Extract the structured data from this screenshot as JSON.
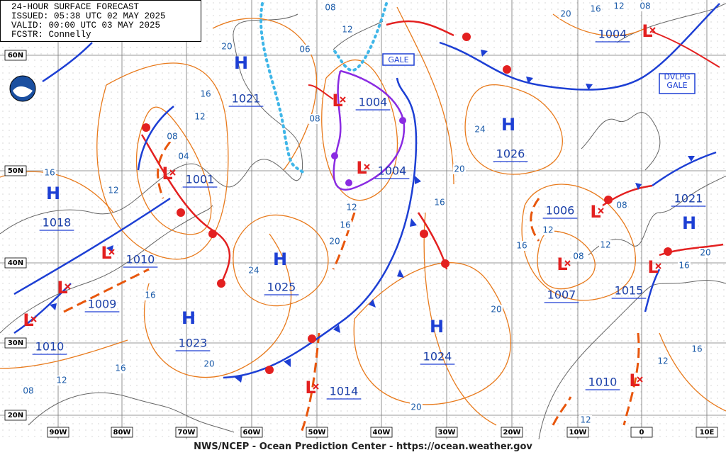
{
  "header": {
    "lines": [
      "24-HOUR SURFACE FORECAST",
      "ISSUED: 05:38 UTC 02 MAY 2025",
      "VALID:  00:00 UTC 03 MAY 2025",
      "FCSTR:  Connelly"
    ]
  },
  "latitude_labels": [
    "60N",
    "50N",
    "40N",
    "30N",
    "20N"
  ],
  "longitude_labels": [
    "90W",
    "80W",
    "70W",
    "60W",
    "50W",
    "40W",
    "30W",
    "20W",
    "10W",
    "0",
    "10E"
  ],
  "pressure_centers": [
    {
      "type": "H",
      "value": "1021"
    },
    {
      "type": "L",
      "value": "1004"
    },
    {
      "type": "L",
      "value": "1004"
    },
    {
      "type": "H",
      "value": "1026"
    },
    {
      "type": "L",
      "value": "1001"
    },
    {
      "type": "H",
      "value": "1018"
    },
    {
      "type": "L",
      "value": "1010"
    },
    {
      "type": "L",
      "value": "1009"
    },
    {
      "type": "L",
      "value": "1010"
    },
    {
      "type": "H",
      "value": "1025"
    },
    {
      "type": "H",
      "value": "1023"
    },
    {
      "type": "H",
      "value": "1024"
    },
    {
      "type": "L",
      "value": "1014"
    },
    {
      "type": "L",
      "value": "1010"
    },
    {
      "type": "L",
      "value": "1007"
    },
    {
      "type": "L",
      "value": "1006"
    },
    {
      "type": "L",
      "value": "1015"
    },
    {
      "type": "H",
      "value": "1021"
    },
    {
      "type": "L",
      "value": "1004"
    }
  ],
  "isobar_labels": [
    "08",
    "12",
    "06",
    "20",
    "16",
    "12",
    "08",
    "04",
    "08",
    "12",
    "16",
    "20",
    "24",
    "16",
    "12",
    "16",
    "16",
    "12",
    "08",
    "20",
    "20",
    "20",
    "16",
    "20",
    "24",
    "20",
    "16",
    "12",
    "08",
    "12",
    "08",
    "12",
    "16",
    "08",
    "16",
    "20",
    "16",
    "12",
    "12"
  ],
  "warnings": [
    "GALE",
    "DVLPG GALE"
  ],
  "footer": "NWS/NCEP - Ocean Prediction Center - https://ocean.weather.gov"
}
